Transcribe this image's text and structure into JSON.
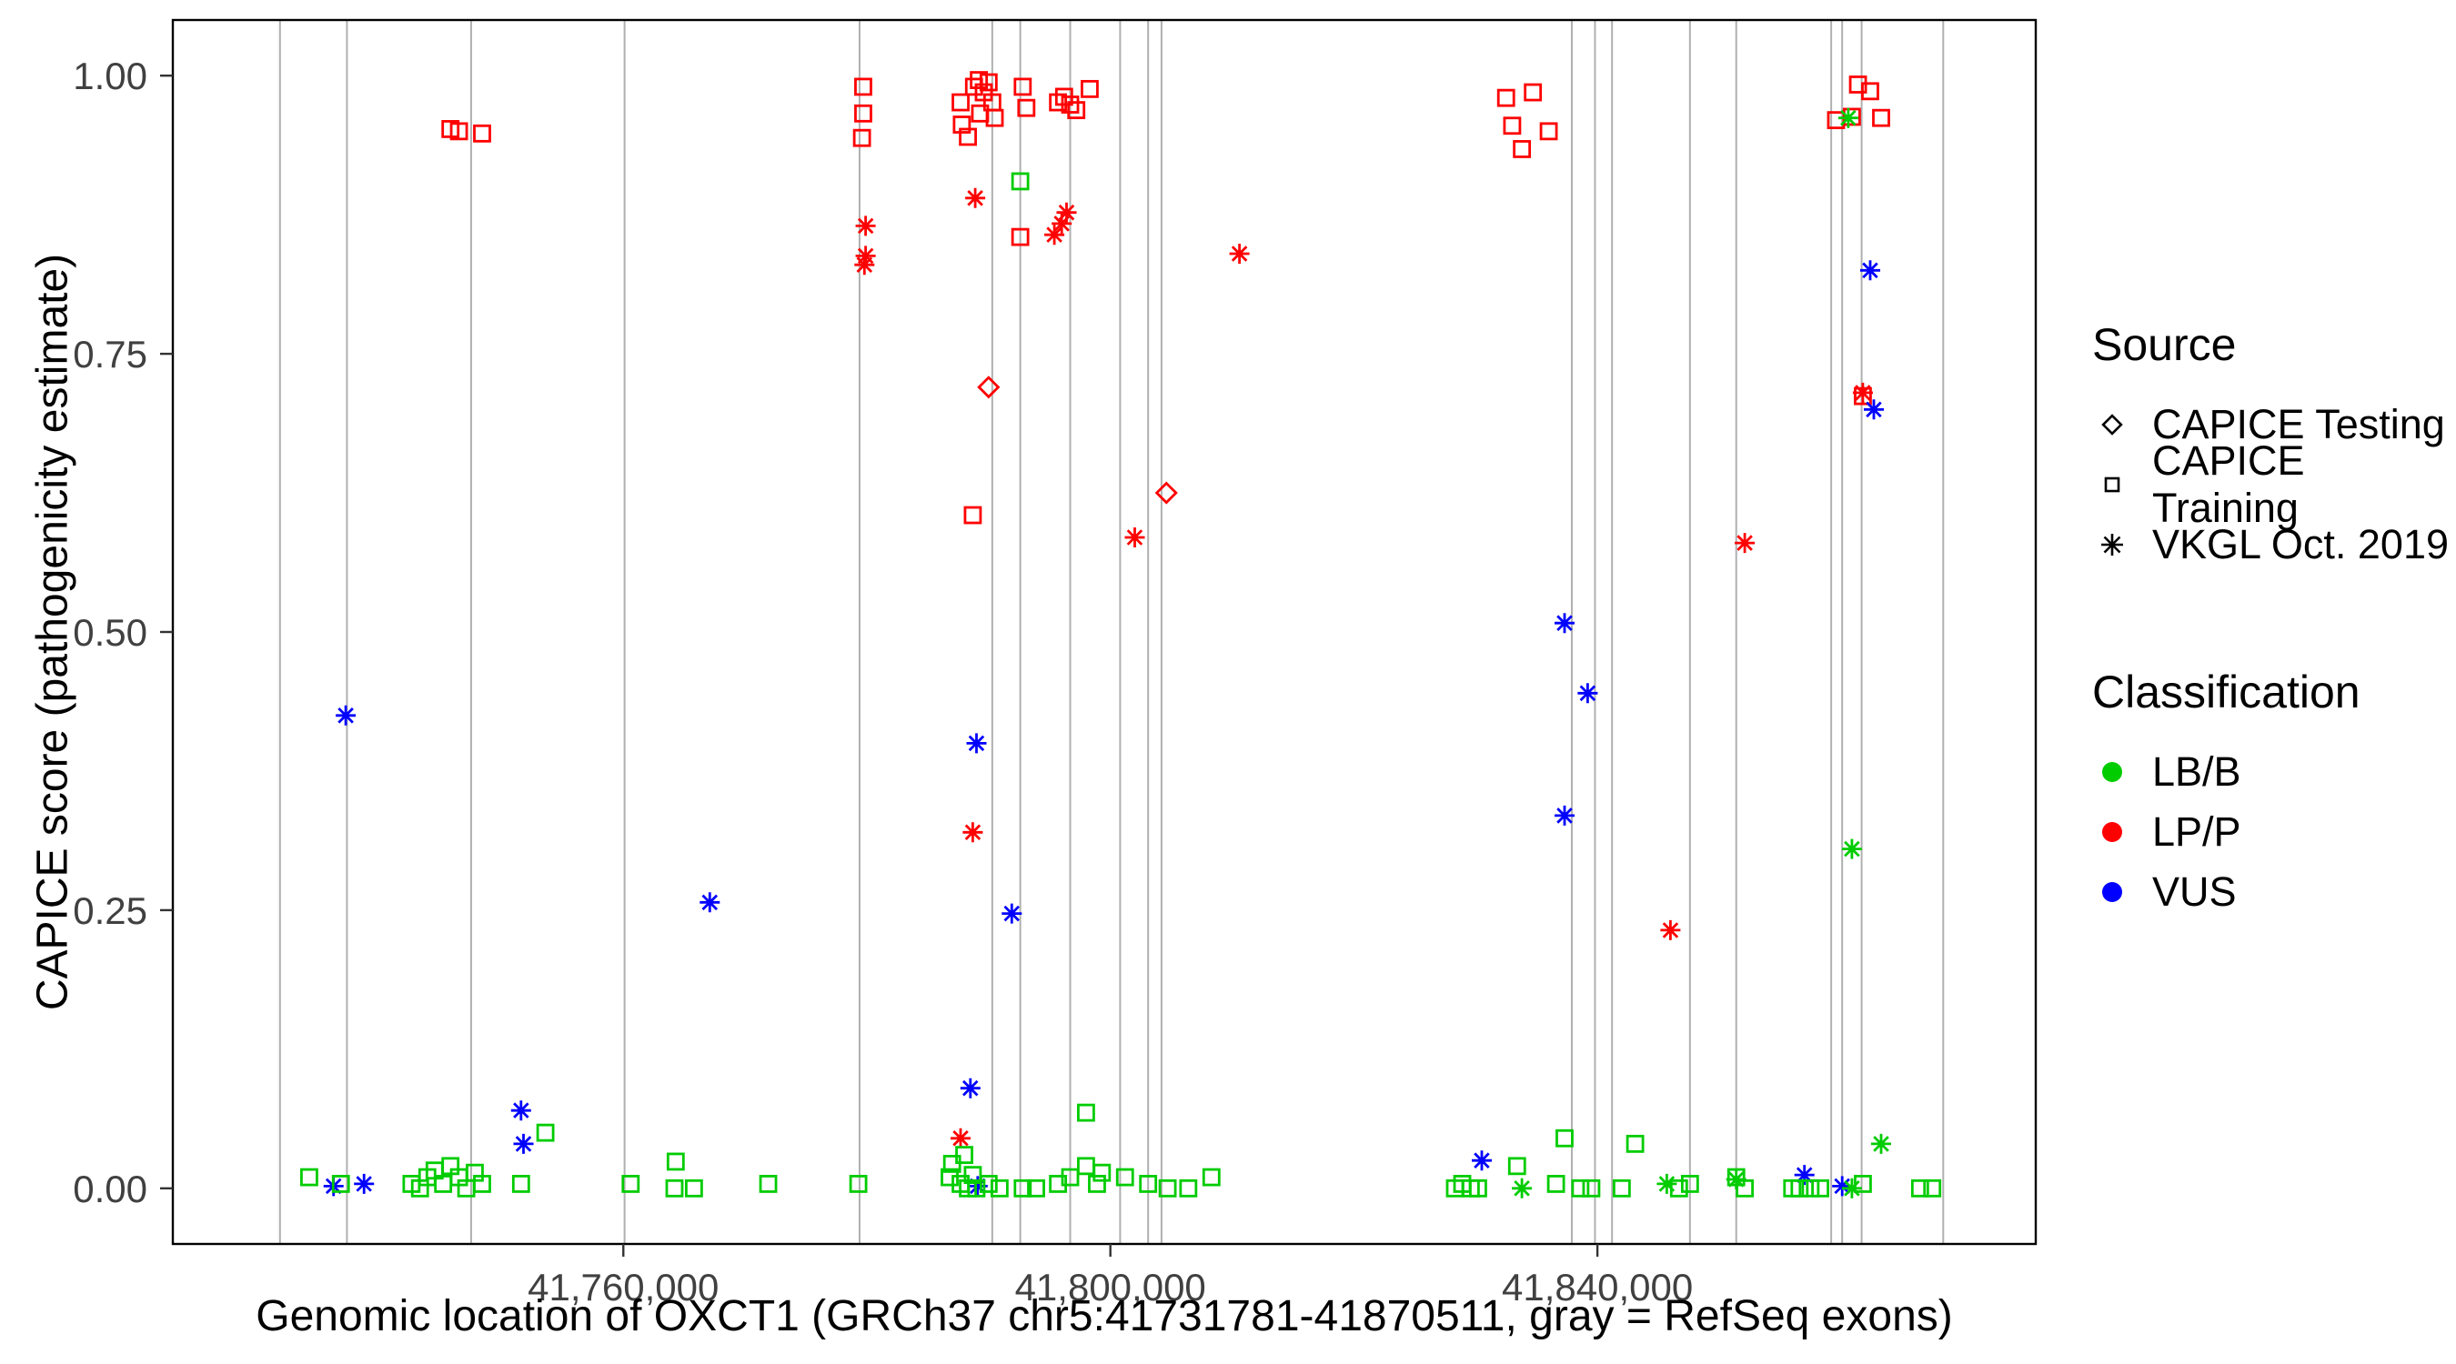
{
  "legend": {
    "source": {
      "title": "Source",
      "items": [
        {
          "shape": "diamond",
          "label": "CAPICE Testing"
        },
        {
          "shape": "square",
          "label": "CAPICE Training"
        },
        {
          "shape": "asterisk",
          "label": "VKGL Oct. 2019"
        }
      ]
    },
    "classification": {
      "title": "Classification",
      "items": [
        {
          "label": "LB/B",
          "color": "#00CC00"
        },
        {
          "label": "LP/P",
          "color": "#FF0000"
        },
        {
          "label": "VUS",
          "color": "#0000FF"
        }
      ]
    }
  },
  "chart_data": {
    "type": "scatter",
    "title": "",
    "xlabel": "Genomic location of OXCT1 (GRCh37 chr5:41731781-41870511, gray = RefSeq exons)",
    "ylabel": "CAPICE score (pathogenicity estimate)",
    "x_domain": [
      41723000,
      41876000
    ],
    "y_domain": [
      -0.05,
      1.05
    ],
    "x_ticks": [
      {
        "value": 41760000,
        "label": "41,760,000"
      },
      {
        "value": 41800000,
        "label": "41,800,000"
      },
      {
        "value": 41840000,
        "label": "41,840,000"
      }
    ],
    "y_ticks": [
      {
        "value": 0.0,
        "label": "0.00"
      },
      {
        "value": 0.25,
        "label": "0.25"
      },
      {
        "value": 0.5,
        "label": "0.50"
      },
      {
        "value": 0.75,
        "label": "0.75"
      },
      {
        "value": 1.0,
        "label": "1.00"
      }
    ],
    "grid": false,
    "legend_position": "right",
    "colors": {
      "LB/B": "#00CC00",
      "LP/P": "#FF0000",
      "VUS": "#0000FF"
    },
    "exon_line_color": "#b0b0b0",
    "exon_note": "gray vertical lines = RefSeq exons",
    "exons": [
      41731800,
      41737300,
      41747500,
      41760100,
      41779400,
      41790300,
      41792600,
      41796700,
      41800800,
      41803100,
      41804200,
      41837900,
      41839800,
      41841200,
      41847600,
      41851400,
      41859200,
      41860100,
      41861700,
      41868400
    ],
    "source_shapes": {
      "testing": "diamond",
      "training": "square",
      "vkgl": "asterisk"
    },
    "point_format": [
      "genomic_position",
      "capice_score",
      "source",
      "classification"
    ],
    "points": [
      [
        41745800,
        0.952,
        "training",
        "LP/P"
      ],
      [
        41746500,
        0.95,
        "training",
        "LP/P"
      ],
      [
        41748400,
        0.948,
        "training",
        "LP/P"
      ],
      [
        41779700,
        0.99,
        "training",
        "LP/P"
      ],
      [
        41779700,
        0.966,
        "training",
        "LP/P"
      ],
      [
        41779600,
        0.944,
        "training",
        "LP/P"
      ],
      [
        41787700,
        0.976,
        "training",
        "LP/P"
      ],
      [
        41787800,
        0.956,
        "training",
        "LP/P"
      ],
      [
        41788300,
        0.945,
        "training",
        "LP/P"
      ],
      [
        41788800,
        0.99,
        "training",
        "LP/P"
      ],
      [
        41789200,
        0.996,
        "training",
        "LP/P"
      ],
      [
        41789600,
        0.985,
        "training",
        "LP/P"
      ],
      [
        41790000,
        0.994,
        "training",
        "LP/P"
      ],
      [
        41789300,
        0.966,
        "training",
        "LP/P"
      ],
      [
        41790300,
        0.976,
        "training",
        "LP/P"
      ],
      [
        41790500,
        0.962,
        "training",
        "LP/P"
      ],
      [
        41792800,
        0.99,
        "training",
        "LP/P"
      ],
      [
        41793100,
        0.971,
        "training",
        "LP/P"
      ],
      [
        41795700,
        0.976,
        "training",
        "LP/P"
      ],
      [
        41796200,
        0.981,
        "training",
        "LP/P"
      ],
      [
        41796700,
        0.974,
        "training",
        "LP/P"
      ],
      [
        41797200,
        0.969,
        "training",
        "LP/P"
      ],
      [
        41798300,
        0.988,
        "training",
        "LP/P"
      ],
      [
        41792600,
        0.855,
        "training",
        "LP/P"
      ],
      [
        41788700,
        0.605,
        "training",
        "LP/P"
      ],
      [
        41832500,
        0.98,
        "training",
        "LP/P"
      ],
      [
        41834700,
        0.985,
        "training",
        "LP/P"
      ],
      [
        41833000,
        0.955,
        "training",
        "LP/P"
      ],
      [
        41833800,
        0.934,
        "training",
        "LP/P"
      ],
      [
        41836000,
        0.95,
        "training",
        "LP/P"
      ],
      [
        41861400,
        0.992,
        "training",
        "LP/P"
      ],
      [
        41862400,
        0.986,
        "training",
        "LP/P"
      ],
      [
        41859600,
        0.96,
        "training",
        "LP/P"
      ],
      [
        41860900,
        0.963,
        "training",
        "LP/P"
      ],
      [
        41863300,
        0.962,
        "training",
        "LP/P"
      ],
      [
        41861800,
        0.712,
        "training",
        "LP/P"
      ],
      [
        41790000,
        0.72,
        "testing",
        "LP/P"
      ],
      [
        41804600,
        0.625,
        "testing",
        "LP/P"
      ],
      [
        41779900,
        0.865,
        "vkgl",
        "LP/P"
      ],
      [
        41779900,
        0.838,
        "vkgl",
        "LP/P"
      ],
      [
        41779800,
        0.83,
        "vkgl",
        "LP/P"
      ],
      [
        41788900,
        0.89,
        "vkgl",
        "LP/P"
      ],
      [
        41795400,
        0.857,
        "vkgl",
        "LP/P"
      ],
      [
        41796000,
        0.867,
        "vkgl",
        "LP/P"
      ],
      [
        41796400,
        0.877,
        "vkgl",
        "LP/P"
      ],
      [
        41802000,
        0.585,
        "vkgl",
        "LP/P"
      ],
      [
        41810600,
        0.84,
        "vkgl",
        "LP/P"
      ],
      [
        41788700,
        0.32,
        "vkgl",
        "LP/P"
      ],
      [
        41787700,
        0.045,
        "vkgl",
        "LP/P"
      ],
      [
        41846000,
        0.232,
        "vkgl",
        "LP/P"
      ],
      [
        41852100,
        0.58,
        "vkgl",
        "LP/P"
      ],
      [
        41861800,
        0.715,
        "vkgl",
        "LP/P"
      ],
      [
        41737200,
        0.425,
        "vkgl",
        "VUS"
      ],
      [
        41767100,
        0.257,
        "vkgl",
        "VUS"
      ],
      [
        41789000,
        0.4,
        "vkgl",
        "VUS"
      ],
      [
        41791900,
        0.247,
        "vkgl",
        "VUS"
      ],
      [
        41788500,
        0.09,
        "vkgl",
        "VUS"
      ],
      [
        41751600,
        0.07,
        "vkgl",
        "VUS"
      ],
      [
        41751800,
        0.04,
        "vkgl",
        "VUS"
      ],
      [
        41736200,
        0.002,
        "vkgl",
        "VUS"
      ],
      [
        41738700,
        0.004,
        "vkgl",
        "VUS"
      ],
      [
        41789100,
        0.002,
        "vkgl",
        "VUS"
      ],
      [
        41837300,
        0.508,
        "vkgl",
        "VUS"
      ],
      [
        41839200,
        0.445,
        "vkgl",
        "VUS"
      ],
      [
        41837300,
        0.335,
        "vkgl",
        "VUS"
      ],
      [
        41830500,
        0.025,
        "vkgl",
        "VUS"
      ],
      [
        41857000,
        0.012,
        "vkgl",
        "VUS"
      ],
      [
        41860100,
        0.002,
        "vkgl",
        "VUS"
      ],
      [
        41862400,
        0.825,
        "vkgl",
        "VUS"
      ],
      [
        41862700,
        0.7,
        "vkgl",
        "VUS"
      ],
      [
        41734200,
        0.01,
        "training",
        "LB/B"
      ],
      [
        41736800,
        0.004,
        "training",
        "LB/B"
      ],
      [
        41742600,
        0.004,
        "training",
        "LB/B"
      ],
      [
        41743300,
        0.0,
        "training",
        "LB/B"
      ],
      [
        41743900,
        0.01,
        "training",
        "LB/B"
      ],
      [
        41744500,
        0.016,
        "training",
        "LB/B"
      ],
      [
        41745200,
        0.004,
        "training",
        "LB/B"
      ],
      [
        41745800,
        0.02,
        "training",
        "LB/B"
      ],
      [
        41746500,
        0.01,
        "training",
        "LB/B"
      ],
      [
        41747100,
        0.0,
        "training",
        "LB/B"
      ],
      [
        41747800,
        0.014,
        "training",
        "LB/B"
      ],
      [
        41748400,
        0.004,
        "training",
        "LB/B"
      ],
      [
        41751600,
        0.004,
        "training",
        "LB/B"
      ],
      [
        41753600,
        0.05,
        "training",
        "LB/B"
      ],
      [
        41760600,
        0.004,
        "training",
        "LB/B"
      ],
      [
        41764300,
        0.024,
        "training",
        "LB/B"
      ],
      [
        41764200,
        0.0,
        "training",
        "LB/B"
      ],
      [
        41765800,
        0.0,
        "training",
        "LB/B"
      ],
      [
        41771900,
        0.004,
        "training",
        "LB/B"
      ],
      [
        41779300,
        0.004,
        "training",
        "LB/B"
      ],
      [
        41786800,
        0.01,
        "training",
        "LB/B"
      ],
      [
        41787000,
        0.022,
        "training",
        "LB/B"
      ],
      [
        41787700,
        0.004,
        "training",
        "LB/B"
      ],
      [
        41788000,
        0.03,
        "training",
        "LB/B"
      ],
      [
        41788300,
        0.0,
        "training",
        "LB/B"
      ],
      [
        41788700,
        0.012,
        "training",
        "LB/B"
      ],
      [
        41789000,
        0.0,
        "training",
        "LB/B"
      ],
      [
        41790000,
        0.004,
        "training",
        "LB/B"
      ],
      [
        41790900,
        0.0,
        "training",
        "LB/B"
      ],
      [
        41792800,
        0.0,
        "training",
        "LB/B"
      ],
      [
        41793900,
        0.0,
        "training",
        "LB/B"
      ],
      [
        41795700,
        0.004,
        "training",
        "LB/B"
      ],
      [
        41796700,
        0.01,
        "training",
        "LB/B"
      ],
      [
        41798000,
        0.02,
        "training",
        "LB/B"
      ],
      [
        41798000,
        0.068,
        "training",
        "LB/B"
      ],
      [
        41798900,
        0.004,
        "training",
        "LB/B"
      ],
      [
        41799300,
        0.014,
        "training",
        "LB/B"
      ],
      [
        41801200,
        0.01,
        "training",
        "LB/B"
      ],
      [
        41803100,
        0.004,
        "training",
        "LB/B"
      ],
      [
        41804700,
        0.0,
        "training",
        "LB/B"
      ],
      [
        41806400,
        0.0,
        "training",
        "LB/B"
      ],
      [
        41808300,
        0.01,
        "training",
        "LB/B"
      ],
      [
        41792600,
        0.905,
        "training",
        "LB/B"
      ],
      [
        41828300,
        0.0,
        "training",
        "LB/B"
      ],
      [
        41828900,
        0.004,
        "training",
        "LB/B"
      ],
      [
        41829600,
        0.0,
        "training",
        "LB/B"
      ],
      [
        41830200,
        0.0,
        "training",
        "LB/B"
      ],
      [
        41833400,
        0.02,
        "training",
        "LB/B"
      ],
      [
        41836600,
        0.004,
        "training",
        "LB/B"
      ],
      [
        41837300,
        0.045,
        "training",
        "LB/B"
      ],
      [
        41838600,
        0.0,
        "training",
        "LB/B"
      ],
      [
        41839500,
        0.0,
        "training",
        "LB/B"
      ],
      [
        41842000,
        0.0,
        "training",
        "LB/B"
      ],
      [
        41843100,
        0.04,
        "training",
        "LB/B"
      ],
      [
        41846700,
        0.0,
        "training",
        "LB/B"
      ],
      [
        41847600,
        0.004,
        "training",
        "LB/B"
      ],
      [
        41851400,
        0.01,
        "training",
        "LB/B"
      ],
      [
        41852100,
        0.0,
        "training",
        "LB/B"
      ],
      [
        41856000,
        0.0,
        "training",
        "LB/B"
      ],
      [
        41856600,
        0.0,
        "training",
        "LB/B"
      ],
      [
        41857500,
        0.0,
        "training",
        "LB/B"
      ],
      [
        41858300,
        0.0,
        "training",
        "LB/B"
      ],
      [
        41861800,
        0.004,
        "training",
        "LB/B"
      ],
      [
        41866500,
        0.0,
        "training",
        "LB/B"
      ],
      [
        41867500,
        0.0,
        "training",
        "LB/B"
      ],
      [
        41833800,
        0.0,
        "vkgl",
        "LB/B"
      ],
      [
        41845700,
        0.004,
        "vkgl",
        "LB/B"
      ],
      [
        41851400,
        0.008,
        "vkgl",
        "LB/B"
      ],
      [
        41860900,
        0.0,
        "vkgl",
        "LB/B"
      ],
      [
        41863300,
        0.04,
        "vkgl",
        "LB/B"
      ],
      [
        41860600,
        0.962,
        "vkgl",
        "LB/B"
      ],
      [
        41860900,
        0.305,
        "vkgl",
        "LB/B"
      ]
    ]
  }
}
